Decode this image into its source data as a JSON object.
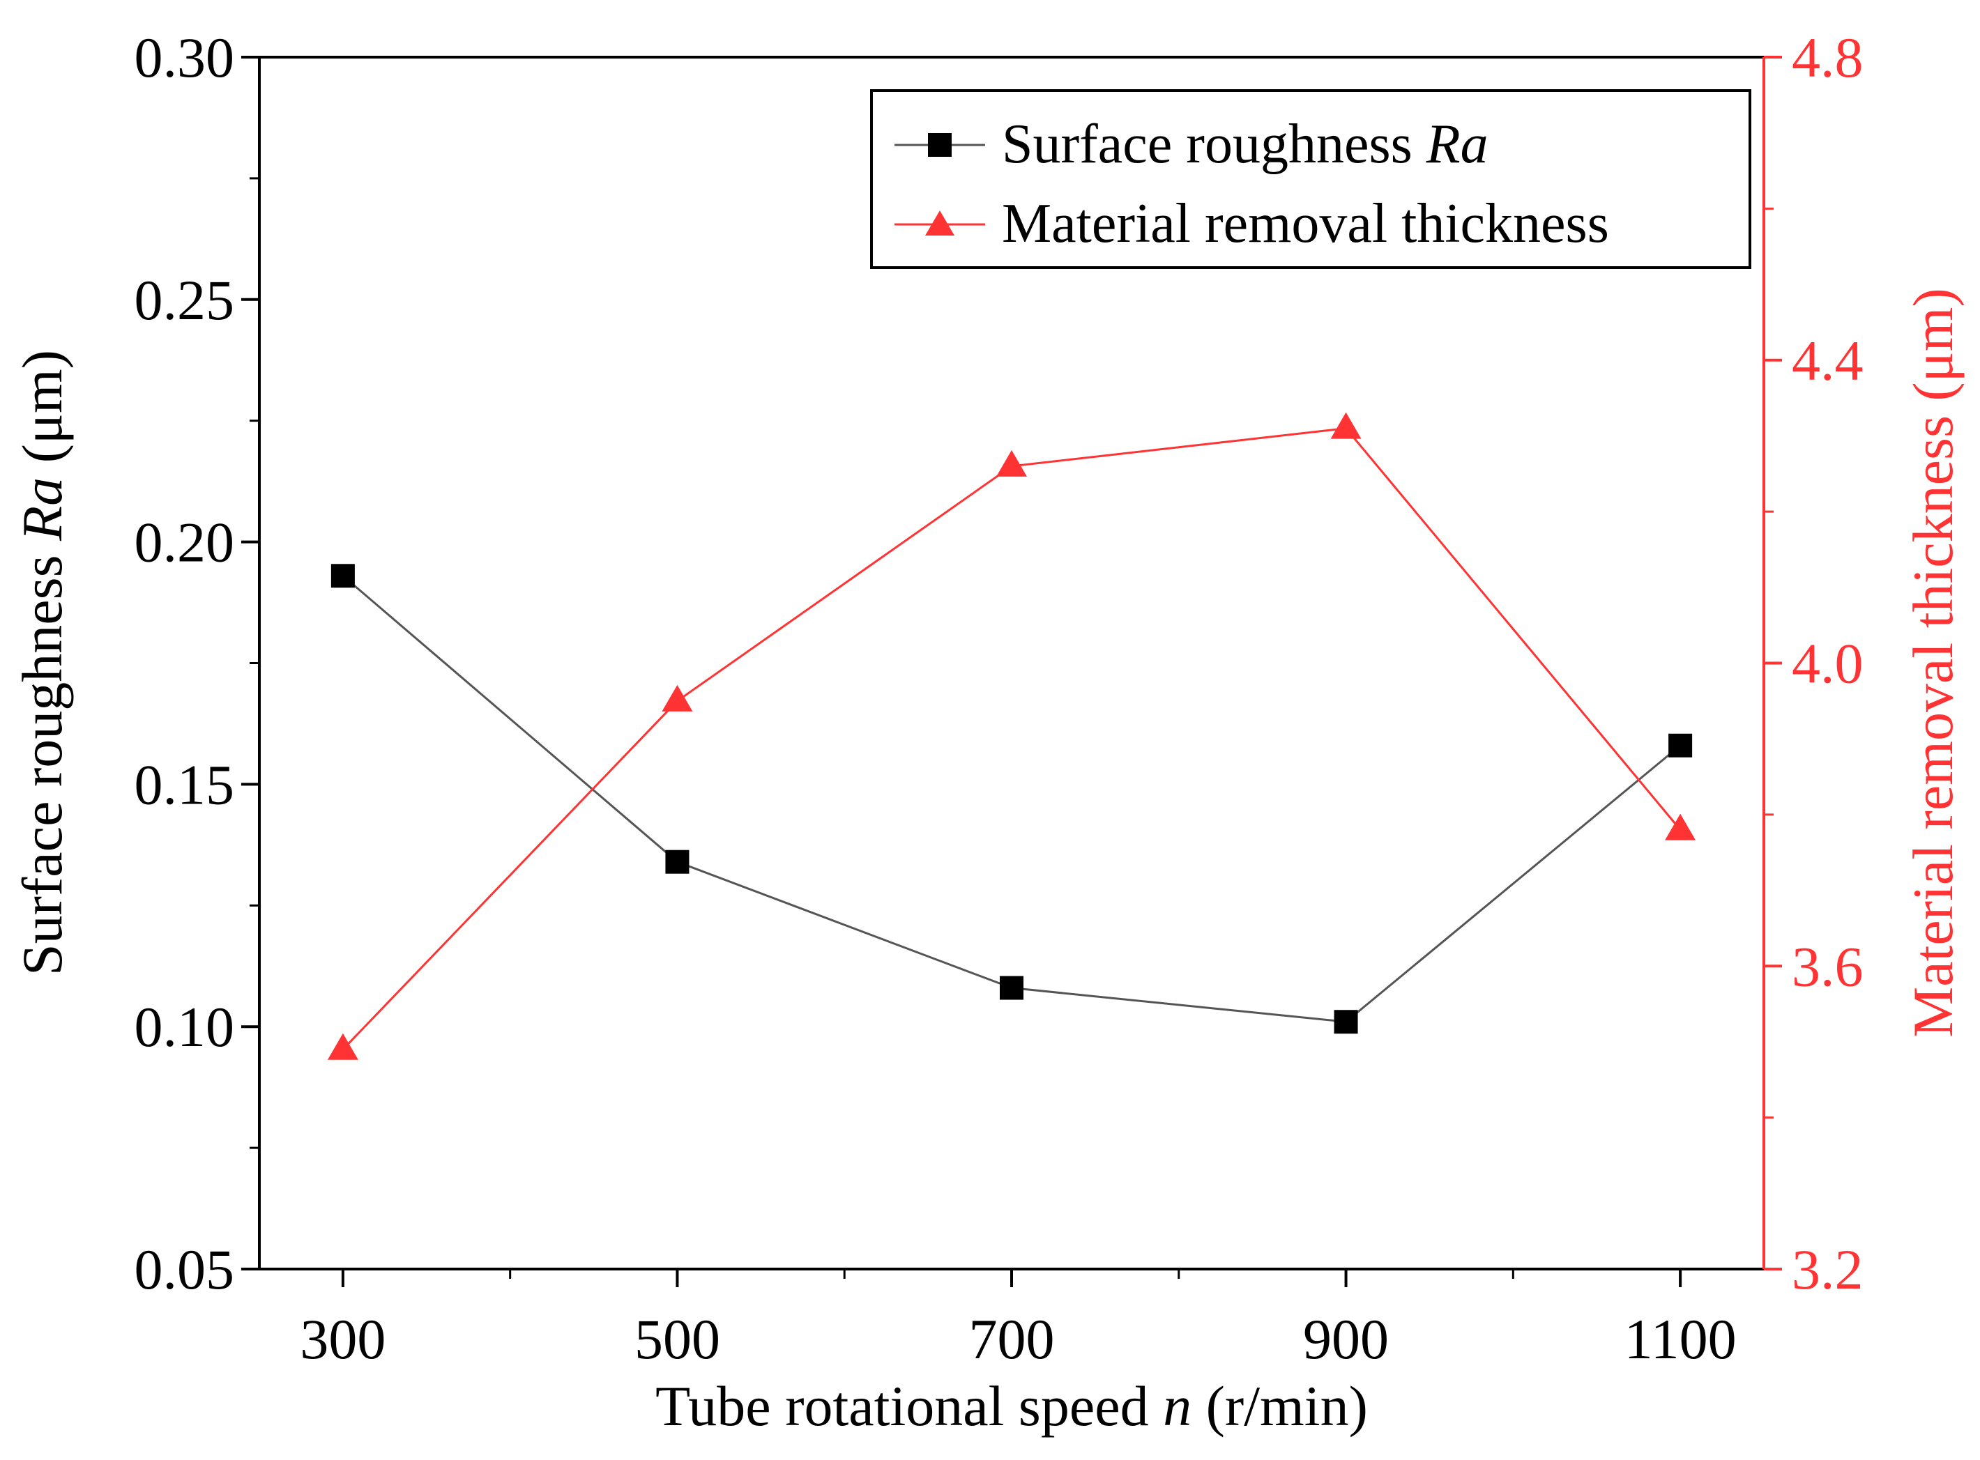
{
  "chart_data": {
    "type": "line",
    "x": [
      300,
      500,
      700,
      900,
      1100
    ],
    "xlim": [
      250,
      1150
    ],
    "xticks": [
      300,
      500,
      700,
      900,
      1100
    ],
    "xtick_labels": [
      "300",
      "500",
      "700",
      "900",
      "1100"
    ],
    "xlabel": {
      "pre": "Tube rotational speed ",
      "italic": "n",
      "post": " (r/min)"
    },
    "ylim_left": [
      0.05,
      0.3
    ],
    "yticks_left": [
      0.05,
      0.1,
      0.15,
      0.2,
      0.25,
      0.3
    ],
    "ytick_labels_left": [
      "0.05",
      "0.10",
      "0.15",
      "0.20",
      "0.25",
      "0.30"
    ],
    "ylabel_left": {
      "pre": "Surface roughness ",
      "italic": "Ra",
      "post": " (μm)"
    },
    "ylim_right": [
      3.2,
      4.8
    ],
    "yticks_right": [
      3.2,
      3.6,
      4.0,
      4.4,
      4.8
    ],
    "ytick_labels_right": [
      "3.2",
      "3.6",
      "4.0",
      "4.4",
      "4.8"
    ],
    "ylabel_right": {
      "text": "Material removal thickness (μm)"
    },
    "legend_position": "top-right",
    "series": [
      {
        "name": "Surface roughness",
        "name_italic": "Ra",
        "axis": "left",
        "marker": "square",
        "color": "#000000",
        "line_color": "#555555",
        "values": [
          0.193,
          0.134,
          0.108,
          0.101,
          0.158
        ]
      },
      {
        "name": "Material removal thickness",
        "name_italic": "",
        "axis": "right",
        "marker": "triangle",
        "color": "#ff3333",
        "line_color": "#ff3333",
        "values": [
          3.49,
          3.95,
          4.26,
          4.31,
          3.78
        ]
      }
    ]
  }
}
